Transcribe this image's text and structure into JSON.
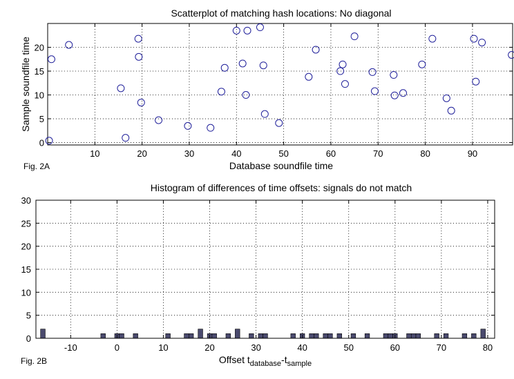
{
  "chart_data": [
    {
      "type": "scatter",
      "figure_label": "Fig. 2A",
      "title": "Scatterplot of matching hash locations:  No diagonal",
      "xlabel": "Database soundfile time",
      "ylabel": "Sample soundfile time",
      "xlim": [
        0,
        98.5
      ],
      "ylim": [
        -0.5,
        25
      ],
      "xticks": [
        10,
        20,
        30,
        40,
        50,
        60,
        70,
        80,
        90
      ],
      "yticks": [
        0,
        5,
        10,
        15,
        20
      ],
      "grid": true,
      "marker": "open-circle",
      "marker_color": "#1f1f9a",
      "points": [
        [
          0.3,
          0.4
        ],
        [
          0.8,
          17.5
        ],
        [
          4.5,
          20.5
        ],
        [
          15.5,
          11.4
        ],
        [
          16.5,
          1.0
        ],
        [
          19.2,
          21.8
        ],
        [
          19.3,
          18.0
        ],
        [
          19.8,
          8.4
        ],
        [
          23.5,
          4.7
        ],
        [
          29.7,
          3.5
        ],
        [
          34.5,
          3.1
        ],
        [
          36.8,
          10.7
        ],
        [
          37.5,
          15.7
        ],
        [
          40.0,
          23.5
        ],
        [
          41.3,
          16.6
        ],
        [
          42.0,
          10.0
        ],
        [
          42.3,
          23.5
        ],
        [
          45.0,
          24.2
        ],
        [
          45.7,
          16.2
        ],
        [
          46.0,
          6.0
        ],
        [
          49.0,
          4.1
        ],
        [
          55.3,
          13.8
        ],
        [
          56.8,
          19.5
        ],
        [
          62.0,
          15.0
        ],
        [
          62.5,
          16.4
        ],
        [
          63.0,
          12.3
        ],
        [
          65.0,
          22.3
        ],
        [
          68.8,
          14.8
        ],
        [
          69.3,
          10.8
        ],
        [
          73.3,
          14.2
        ],
        [
          73.5,
          9.9
        ],
        [
          75.3,
          10.4
        ],
        [
          79.3,
          16.4
        ],
        [
          81.5,
          21.8
        ],
        [
          84.5,
          9.3
        ],
        [
          85.5,
          6.7
        ],
        [
          90.3,
          21.8
        ],
        [
          90.7,
          12.8
        ],
        [
          92.0,
          21.0
        ],
        [
          98.3,
          18.4
        ]
      ]
    },
    {
      "type": "bar",
      "figure_label": "Fig. 2B",
      "title": "Histogram of differences of time offsets: signals do not match",
      "xlabel_main": "Offset t",
      "xlabel_sub1": "database",
      "xlabel_mid": "-t",
      "xlabel_sub2": "sample",
      "xlim": [
        -17.5,
        81.5
      ],
      "ylim": [
        0,
        30
      ],
      "xticks": [
        -10,
        0,
        10,
        20,
        30,
        40,
        50,
        60,
        70,
        80
      ],
      "yticks": [
        0,
        5,
        10,
        15,
        20,
        25,
        30
      ],
      "grid": true,
      "bar_color": "#4a4a6e",
      "bin_width": 1,
      "bins": [
        [
          -16,
          2
        ],
        [
          -3,
          1
        ],
        [
          0,
          1
        ],
        [
          1,
          1
        ],
        [
          4,
          1
        ],
        [
          11,
          1
        ],
        [
          15,
          1
        ],
        [
          16,
          1
        ],
        [
          18,
          2
        ],
        [
          20,
          1
        ],
        [
          21,
          1
        ],
        [
          24,
          1
        ],
        [
          26,
          2
        ],
        [
          29,
          1
        ],
        [
          31,
          1
        ],
        [
          32,
          1
        ],
        [
          38,
          1
        ],
        [
          40,
          1
        ],
        [
          42,
          1
        ],
        [
          43,
          1
        ],
        [
          45,
          1
        ],
        [
          46,
          1
        ],
        [
          48,
          1
        ],
        [
          51,
          1
        ],
        [
          54,
          1
        ],
        [
          58,
          1
        ],
        [
          59,
          1
        ],
        [
          60,
          1
        ],
        [
          63,
          1
        ],
        [
          64,
          1
        ],
        [
          65,
          1
        ],
        [
          69,
          1
        ],
        [
          71,
          1
        ],
        [
          75,
          1
        ],
        [
          77,
          1
        ],
        [
          79,
          2
        ]
      ]
    }
  ]
}
